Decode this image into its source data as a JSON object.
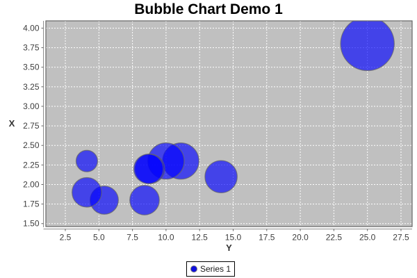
{
  "chart_data": {
    "type": "bubble",
    "title": "Bubble Chart Demo 1",
    "orientation": "horizontal",
    "vertical_axis": {
      "label": "X",
      "tick_labels": [
        "1.50",
        "1.75",
        "2.00",
        "2.25",
        "2.50",
        "2.75",
        "3.00",
        "3.25",
        "3.50",
        "3.75",
        "4.00"
      ],
      "tick_values": [
        1.5,
        1.75,
        2.0,
        2.25,
        2.5,
        2.75,
        3.0,
        3.25,
        3.5,
        3.75,
        4.0
      ],
      "range": [
        1.462,
        4.093
      ],
      "grid": true
    },
    "horizontal_axis": {
      "label": "Y",
      "tick_labels": [
        "2.5",
        "5.0",
        "7.5",
        "10.0",
        "12.5",
        "15.0",
        "17.5",
        "20.0",
        "22.5",
        "25.0",
        "27.5"
      ],
      "tick_values": [
        2.5,
        5.0,
        7.5,
        10.0,
        12.5,
        15.0,
        17.5,
        20.0,
        22.5,
        25.0,
        27.5
      ],
      "range": [
        1.05,
        28.33
      ],
      "grid": true
    },
    "series": [
      {
        "name": "Series 1",
        "points": [
          {
            "x": 2.1,
            "y": 14.1,
            "z": 2.4
          },
          {
            "x": 2.3,
            "y": 11.1,
            "z": 2.7
          },
          {
            "x": 2.3,
            "y": 10.0,
            "z": 2.7
          },
          {
            "x": 2.2,
            "y": 8.8,
            "z": 2.2
          },
          {
            "x": 2.2,
            "y": 8.7,
            "z": 2.2
          },
          {
            "x": 1.8,
            "y": 8.4,
            "z": 2.2
          },
          {
            "x": 1.8,
            "y": 5.4,
            "z": 2.1
          },
          {
            "x": 1.9,
            "y": 4.1,
            "z": 2.2
          },
          {
            "x": 2.3,
            "y": 4.1,
            "z": 1.6
          },
          {
            "x": 3.8,
            "y": 25.0,
            "z": 4.0
          }
        ]
      }
    ],
    "legend": {
      "position": "bottom",
      "items": [
        {
          "label": "Series 1",
          "color": "#0f0fe0"
        }
      ]
    },
    "style": {
      "chart_background": "#ffffff",
      "plot_background": "#c0c0c0",
      "gridline_color": "#ffffff",
      "bubble_fill": "#0000ff",
      "bubble_opacity": 0.65,
      "bubble_outline": "#666666",
      "plot_border": "#666666",
      "axis_line": "#8c8c8c",
      "tick_mark_color": "#666666",
      "tick_label_color": "#3d3d3d",
      "axis_label_color": "#333333",
      "title_color": "#000000"
    }
  }
}
